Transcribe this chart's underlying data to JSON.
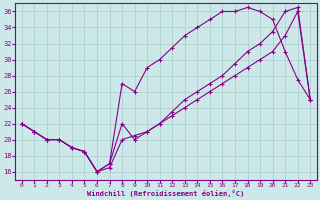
{
  "bg_color": "#cce8e8",
  "line_color": "#880088",
  "grid_color": "#aacccc",
  "xlabel": "Windchill (Refroidissement éolien,°C)",
  "xlim": [
    -0.5,
    23.5
  ],
  "ylim": [
    15,
    37
  ],
  "yticks": [
    16,
    18,
    20,
    22,
    24,
    26,
    28,
    30,
    32,
    34,
    36
  ],
  "xticks": [
    0,
    1,
    2,
    3,
    4,
    5,
    6,
    7,
    8,
    9,
    10,
    11,
    12,
    13,
    14,
    15,
    16,
    17,
    18,
    19,
    20,
    21,
    22,
    23
  ],
  "line1_x": [
    0,
    1,
    2,
    3,
    4,
    5,
    6,
    7,
    8,
    9,
    10,
    11,
    12,
    13,
    14,
    15,
    16,
    17,
    18,
    19,
    20,
    21,
    22,
    23
  ],
  "line1_y": [
    22,
    21,
    20,
    20,
    19,
    18.5,
    16,
    16.5,
    20,
    20.5,
    21,
    22,
    23,
    24,
    25,
    26,
    27,
    28,
    29,
    30,
    31,
    33,
    36,
    25
  ],
  "line2_x": [
    0,
    1,
    2,
    3,
    4,
    5,
    6,
    7,
    8,
    9,
    10,
    11,
    12,
    13,
    14,
    15,
    16,
    17,
    18,
    19,
    20,
    21,
    22,
    23
  ],
  "line2_y": [
    22,
    21,
    20,
    20,
    19,
    18.5,
    16,
    17,
    27,
    26,
    29,
    30,
    31.5,
    33,
    34,
    35,
    36,
    36,
    36.5,
    36,
    35,
    31,
    27.5,
    25
  ],
  "line3_x": [
    0,
    1,
    2,
    3,
    4,
    5,
    6,
    7,
    8,
    9,
    10,
    11,
    12,
    13,
    14,
    15,
    16,
    17,
    18,
    19,
    20,
    21,
    22,
    23
  ],
  "line3_y": [
    22,
    21,
    20,
    20,
    19,
    18.5,
    16,
    17,
    22,
    20,
    21,
    22,
    23.5,
    25,
    26,
    27,
    28,
    29.5,
    31,
    32,
    33.5,
    36,
    36.5,
    25
  ]
}
